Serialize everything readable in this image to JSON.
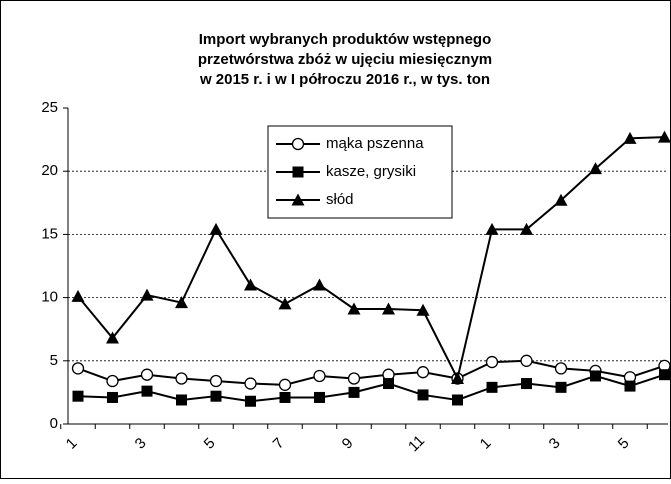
{
  "chart_data": {
    "type": "line",
    "title": [
      "Import wybranych produktów wstępnego",
      "przetwórstwa zbóż w ujęciu miesięcznym",
      "w  2015 r. i w I półroczu  2016 r., w tys. ton"
    ],
    "categories": [
      "1",
      null,
      "3",
      null,
      "5",
      null,
      "7",
      null,
      "9",
      null,
      "11",
      null,
      "1",
      null,
      "3",
      null,
      "5",
      null
    ],
    "series": [
      {
        "name": "mąka pszenna",
        "color": "#000000",
        "marker": "circle",
        "values": [
          4.4,
          3.4,
          3.9,
          3.6,
          3.4,
          3.2,
          3.1,
          3.8,
          3.6,
          3.9,
          4.1,
          3.6,
          4.9,
          5.0,
          4.4,
          4.2,
          3.7,
          4.6
        ]
      },
      {
        "name": "kasze, grysiki",
        "color": "#000000",
        "marker": "square",
        "values": [
          2.2,
          2.1,
          2.6,
          1.9,
          2.2,
          1.8,
          2.1,
          2.1,
          2.5,
          3.2,
          2.3,
          1.9,
          2.9,
          3.2,
          2.9,
          3.8,
          3.0,
          3.9
        ]
      },
      {
        "name": "słód",
        "color": "#000000",
        "marker": "triangle",
        "values": [
          10.1,
          6.8,
          10.2,
          9.6,
          15.4,
          11.0,
          9.5,
          11.0,
          9.1,
          9.1,
          9.0,
          3.6,
          15.4,
          15.4,
          17.7,
          20.2,
          22.6,
          22.7
        ]
      }
    ],
    "ylim": [
      0,
      25
    ],
    "yticks": [
      0,
      5,
      10,
      15,
      20,
      25
    ],
    "grid": true,
    "legend": "upper center"
  }
}
